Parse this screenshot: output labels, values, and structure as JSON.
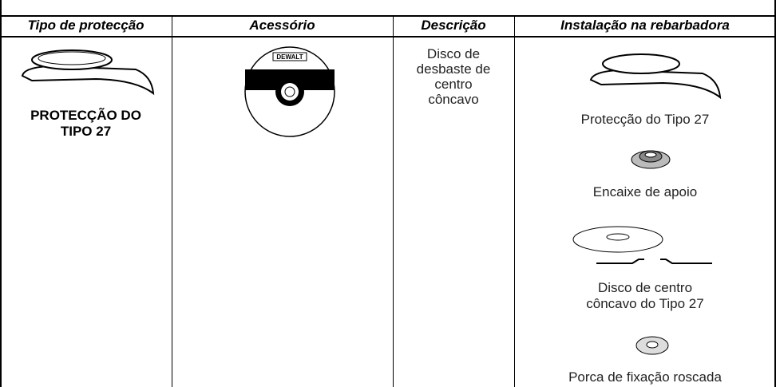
{
  "table": {
    "headers": [
      "Tipo de protecção",
      "Acessório",
      "Descrição",
      "Instalação na rebarbadora"
    ],
    "rows": [
      {
        "guard": "PROTECÇÃO DO TIPO 27",
        "brand_logo": "DEWALT",
        "description": "Disco de desbaste de centro côncavo",
        "installation": [
          "Protecção do Tipo 27",
          "Encaixe de apoio",
          "Disco de centro côncavo do Tipo 27",
          "Porca de fixação roscada"
        ]
      }
    ]
  }
}
